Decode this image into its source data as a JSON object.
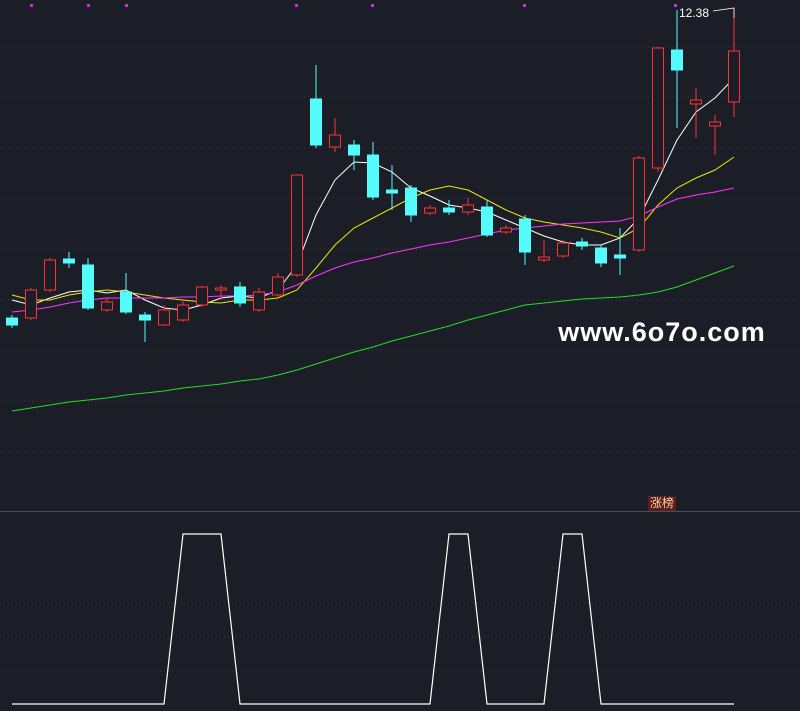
{
  "chart_data": [
    {
      "type": "candlestick",
      "open": [
        9.28,
        9.28,
        9.56,
        9.87,
        9.81,
        9.36,
        9.54,
        9.31,
        9.21,
        9.26,
        9.41,
        9.56,
        9.59,
        9.36,
        9.51,
        9.71,
        11.47,
        10.99,
        11.01,
        10.91,
        10.56,
        10.58,
        10.33,
        10.38,
        10.34,
        10.39,
        10.14,
        10.27,
        9.86,
        9.9,
        10.04,
        9.98,
        9.91,
        9.96,
        10.78,
        11.96,
        11.42,
        11.2,
        11.44
      ],
      "high": [
        9.31,
        9.58,
        9.88,
        9.94,
        9.88,
        9.48,
        9.73,
        9.34,
        9.41,
        9.46,
        9.6,
        9.61,
        9.64,
        9.58,
        9.73,
        10.71,
        11.81,
        11.28,
        11.06,
        11.04,
        10.81,
        10.61,
        10.41,
        10.46,
        10.48,
        10.46,
        10.21,
        10.31,
        10.06,
        10.06,
        10.08,
        10.01,
        10.18,
        10.9,
        11.99,
        12.36,
        11.58,
        11.31,
        12.38
      ],
      "low": [
        9.18,
        9.26,
        9.54,
        9.78,
        9.36,
        9.34,
        9.32,
        9.04,
        9.2,
        9.24,
        9.39,
        9.46,
        9.39,
        9.34,
        9.49,
        9.69,
        10.98,
        10.94,
        10.76,
        10.46,
        10.36,
        10.24,
        10.31,
        10.31,
        10.31,
        10.09,
        10.12,
        9.81,
        9.84,
        9.88,
        9.96,
        9.79,
        9.71,
        9.94,
        10.74,
        11.18,
        11.08,
        10.91,
        11.29
      ],
      "close": [
        9.21,
        9.56,
        9.86,
        9.83,
        9.38,
        9.44,
        9.34,
        9.26,
        9.36,
        9.41,
        9.59,
        9.58,
        9.43,
        9.54,
        9.69,
        10.71,
        11.01,
        11.11,
        10.91,
        10.49,
        10.53,
        10.31,
        10.38,
        10.34,
        10.41,
        10.11,
        10.18,
        9.94,
        9.89,
        10.03,
        10.0,
        9.83,
        9.88,
        10.88,
        11.98,
        11.76,
        11.46,
        11.24,
        11.95
      ],
      "up_color": "#ff3232",
      "down_color": "#54fcfc",
      "series": [
        {
          "color": "#ffffff",
          "values": [
            9.46,
            9.41,
            9.48,
            9.54,
            9.56,
            9.53,
            9.56,
            9.46,
            9.38,
            9.36,
            9.41,
            9.48,
            9.5,
            9.48,
            9.56,
            9.81,
            10.31,
            10.66,
            10.84,
            10.83,
            10.74,
            10.58,
            10.5,
            10.41,
            10.38,
            10.34,
            10.26,
            10.18,
            10.1,
            10.04,
            10.01,
            10.01,
            10.08,
            10.28,
            10.66,
            11.06,
            11.34,
            11.48,
            11.68
          ]
        },
        {
          "color": "#e8e800",
          "values": [
            9.51,
            9.46,
            9.46,
            9.51,
            9.54,
            9.56,
            9.54,
            9.51,
            9.48,
            9.46,
            9.44,
            9.43,
            9.46,
            9.46,
            9.48,
            9.56,
            9.78,
            10.01,
            10.18,
            10.28,
            10.38,
            10.48,
            10.56,
            10.6,
            10.56,
            10.46,
            10.36,
            10.28,
            10.24,
            10.21,
            10.18,
            10.14,
            10.08,
            10.18,
            10.41,
            10.58,
            10.68,
            10.76,
            10.89
          ]
        },
        {
          "color": "#ff33ff",
          "values": [
            9.34,
            9.36,
            9.39,
            9.43,
            9.46,
            9.48,
            9.48,
            9.48,
            9.48,
            9.49,
            9.49,
            9.5,
            9.5,
            9.51,
            9.54,
            9.61,
            9.7,
            9.78,
            9.84,
            9.88,
            9.93,
            9.97,
            10.01,
            10.04,
            10.08,
            10.12,
            10.16,
            10.18,
            10.2,
            10.22,
            10.23,
            10.24,
            10.25,
            10.3,
            10.39,
            10.47,
            10.51,
            10.54,
            10.58
          ]
        },
        {
          "color": "#22dd22",
          "values": [
            8.35,
            8.38,
            8.41,
            8.44,
            8.46,
            8.48,
            8.51,
            8.53,
            8.55,
            8.58,
            8.6,
            8.62,
            8.65,
            8.67,
            8.71,
            8.76,
            8.82,
            8.88,
            8.94,
            8.99,
            9.05,
            9.1,
            9.15,
            9.2,
            9.26,
            9.31,
            9.36,
            9.41,
            9.43,
            9.45,
            9.47,
            9.48,
            9.49,
            9.51,
            9.54,
            9.59,
            9.66,
            9.73,
            9.8
          ]
        }
      ],
      "ylim": [
        7.36,
        12.46
      ],
      "annotations": [
        "12.38",
        "涨榜"
      ],
      "watermark": "www.6o7o.com"
    },
    {
      "type": "line",
      "color": "#ffffff",
      "values": [
        0,
        0,
        0,
        0,
        0,
        0,
        0,
        0,
        0,
        1,
        1,
        1,
        0,
        0,
        0,
        0,
        0,
        0,
        0,
        0,
        0,
        0,
        0,
        1,
        1,
        0,
        0,
        0,
        0,
        1,
        1,
        0,
        0,
        0,
        0,
        0,
        0,
        0,
        0
      ],
      "ylim": [
        0,
        1
      ]
    }
  ]
}
